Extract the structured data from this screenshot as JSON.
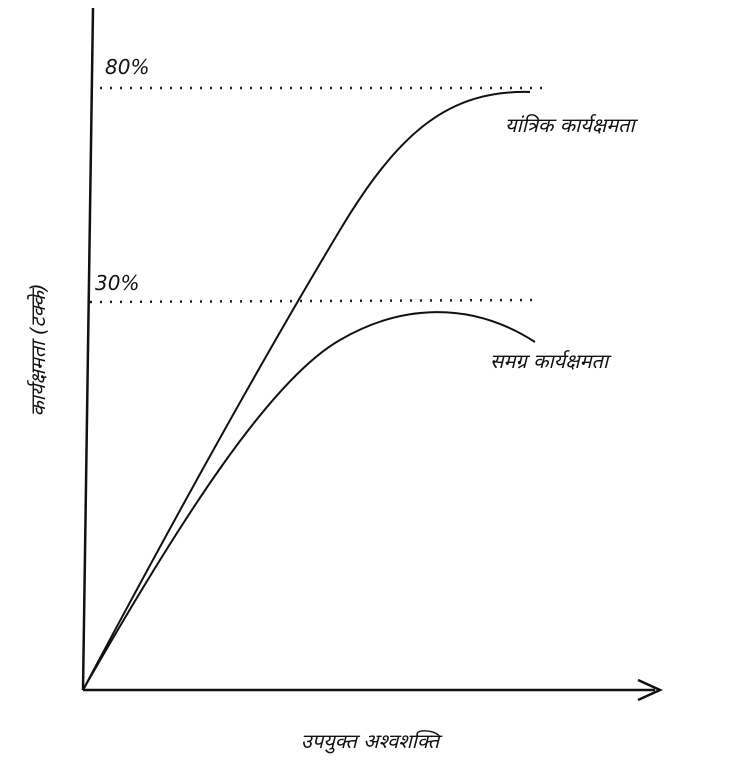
{
  "diagram": {
    "y_axis_label": "कार्यक्षमता (टक्के)",
    "x_axis_label": "उपयुक्त अश्वशक्ति",
    "levels": [
      "80%",
      "30%"
    ],
    "curves": [
      "यांत्रिक कार्यक्षमता",
      "समग्र कार्यक्षमता"
    ]
  }
}
